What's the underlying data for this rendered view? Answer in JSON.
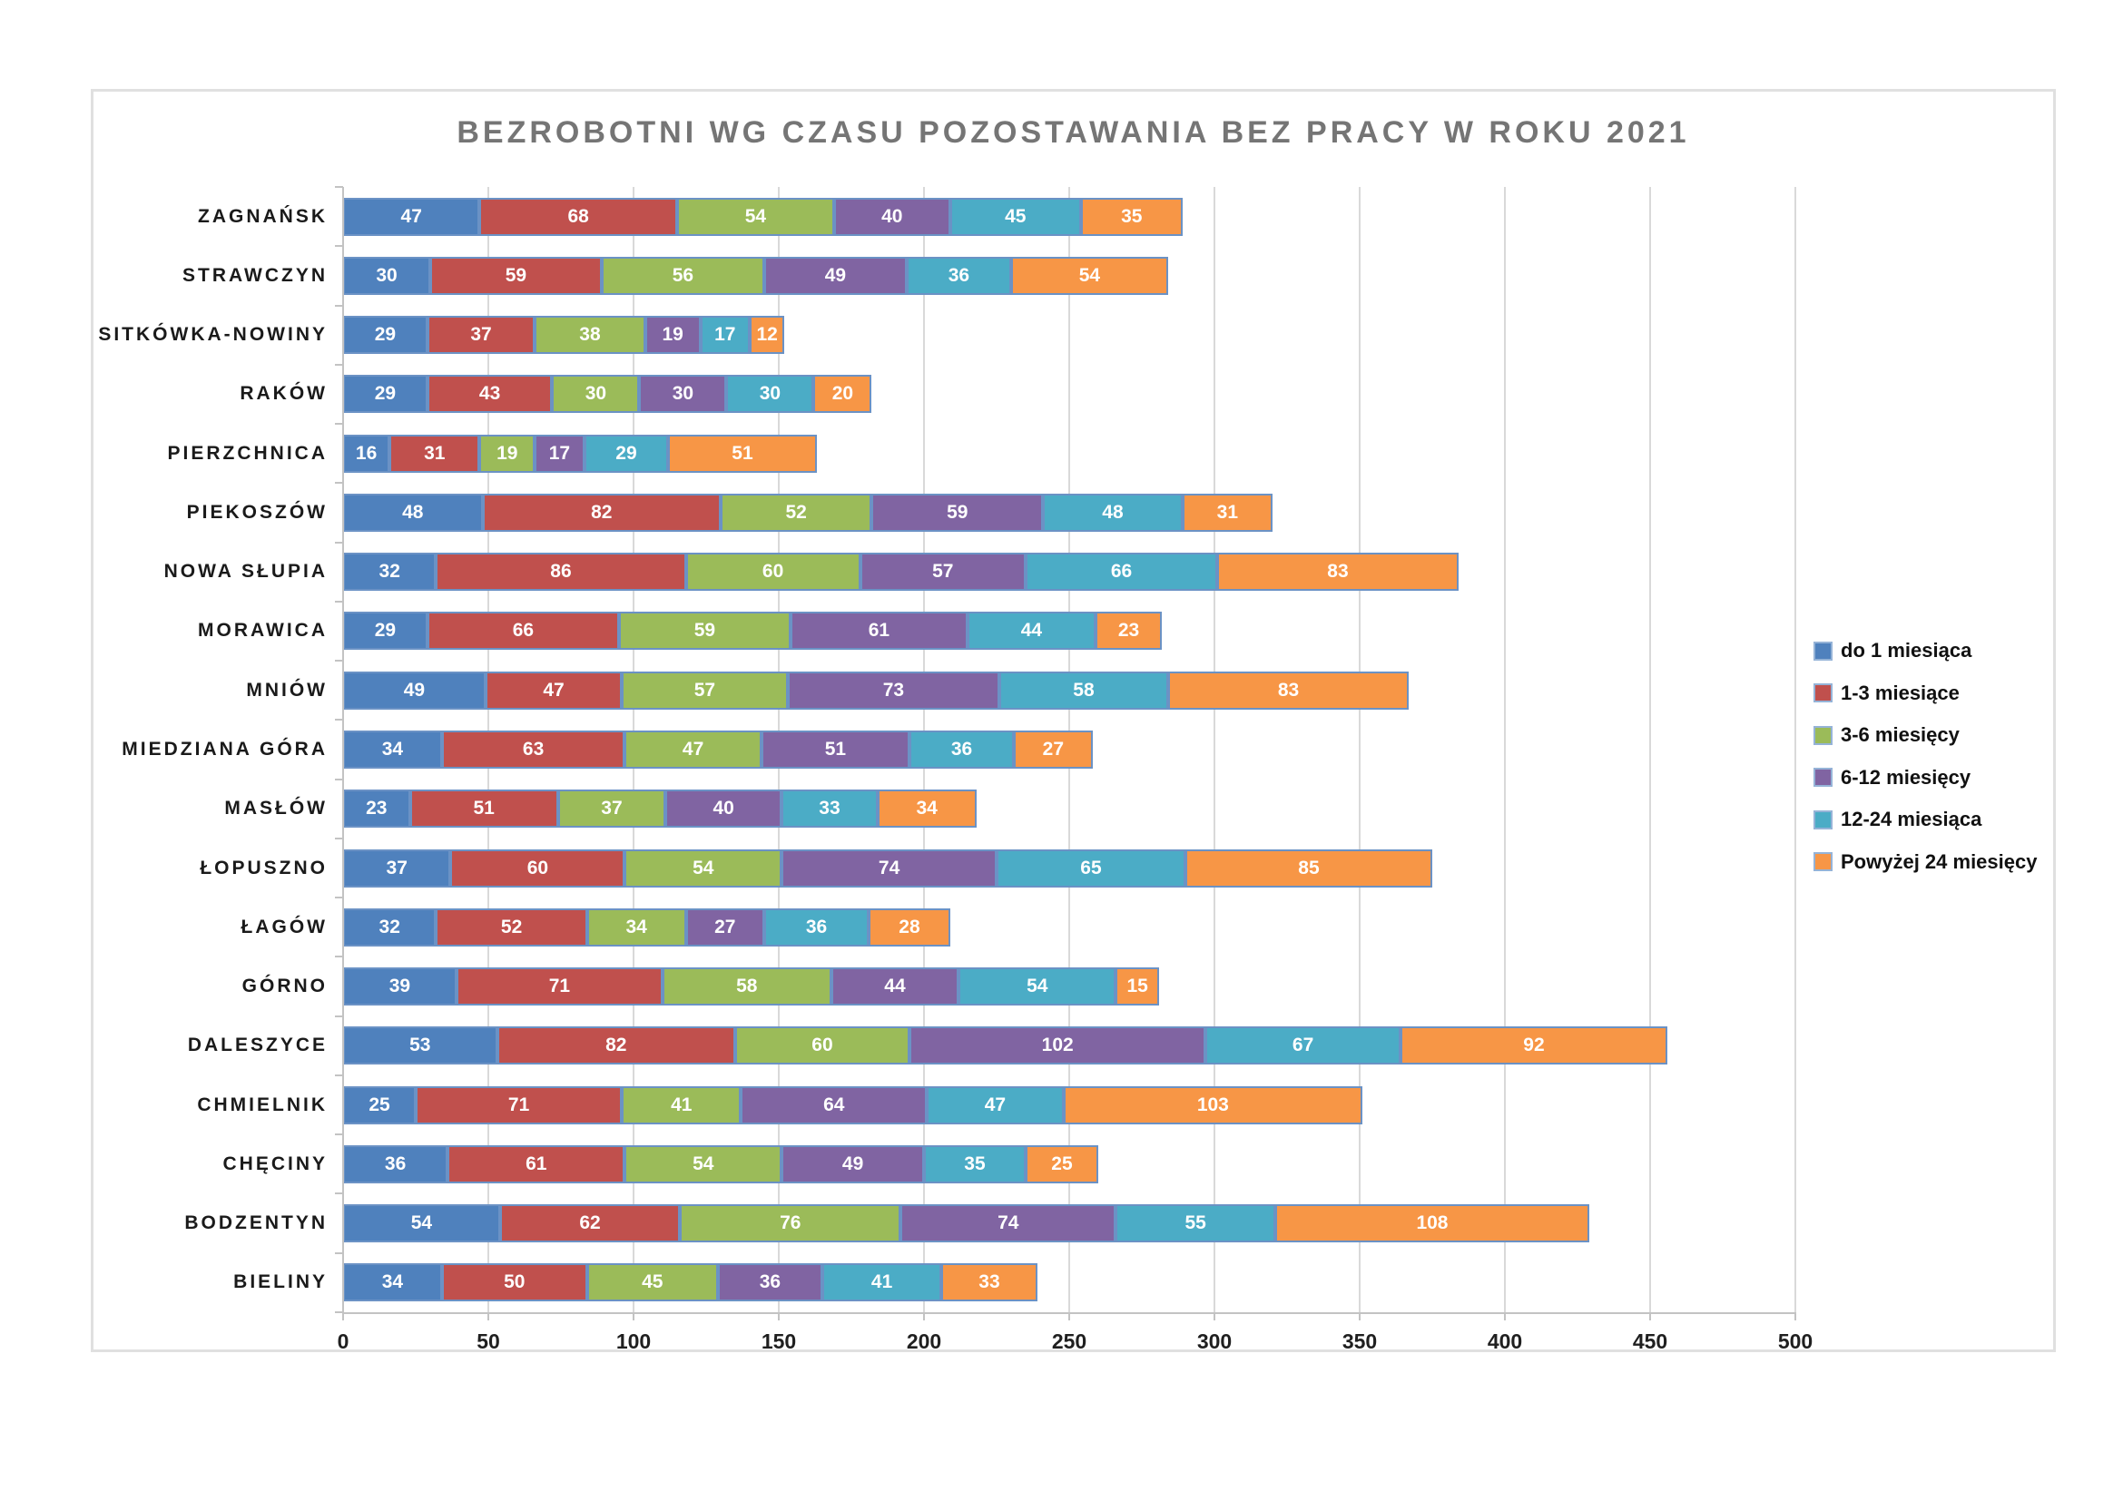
{
  "title": "BEZROBOTNI WG CZASU POZOSTAWANIA BEZ PRACY W ROKU 2021",
  "chart_data": {
    "type": "bar",
    "orientation": "horizontal",
    "stacked": true,
    "title": "BEZROBOTNI WG CZASU POZOSTAWANIA BEZ PRACY W ROKU 2021",
    "xlabel": "",
    "ylabel": "",
    "xlim": [
      0,
      500
    ],
    "x_ticks": [
      0,
      50,
      100,
      150,
      200,
      250,
      300,
      350,
      400,
      450,
      500
    ],
    "grid": true,
    "legend_position": "right",
    "value_label_color": "#ffffff",
    "bar_border_color": "#6b92c5",
    "categories": [
      "ZAGNAŃSK",
      "STRAWCZYN",
      "SITKÓWKA-NOWINY",
      "RAKÓW",
      "PIERZCHNICA",
      "PIEKOSZÓW",
      "NOWA SŁUPIA",
      "MORAWICA",
      "MNIÓW",
      "MIEDZIANA GÓRA",
      "MASŁÓW",
      "ŁOPUSZNO",
      "ŁAGÓW",
      "GÓRNO",
      "DALESZYCE",
      "CHMIELNIK",
      "CHĘCINY",
      "BODZENTYN",
      "BIELINY"
    ],
    "series": [
      {
        "name": "do 1 miesiąca",
        "color": "#4f81bd",
        "values": [
          47,
          30,
          29,
          29,
          16,
          48,
          32,
          29,
          49,
          34,
          23,
          37,
          32,
          39,
          53,
          25,
          36,
          54,
          34
        ]
      },
      {
        "name": "1-3 miesiące",
        "color": "#c0504d",
        "values": [
          68,
          59,
          37,
          43,
          31,
          82,
          86,
          66,
          47,
          63,
          51,
          60,
          52,
          71,
          82,
          71,
          61,
          62,
          50
        ]
      },
      {
        "name": "3-6 miesięcy",
        "color": "#9bbb59",
        "values": [
          54,
          56,
          38,
          30,
          19,
          52,
          60,
          59,
          57,
          47,
          37,
          54,
          34,
          58,
          60,
          41,
          54,
          76,
          45
        ]
      },
      {
        "name": "6-12 miesięcy",
        "color": "#8064a2",
        "values": [
          40,
          49,
          19,
          30,
          17,
          59,
          57,
          61,
          73,
          51,
          40,
          74,
          27,
          44,
          102,
          64,
          49,
          74,
          36
        ]
      },
      {
        "name": "12-24 miesiąca",
        "color": "#4bacc6",
        "values": [
          45,
          36,
          17,
          30,
          29,
          48,
          66,
          44,
          58,
          36,
          33,
          65,
          36,
          54,
          67,
          47,
          35,
          55,
          41
        ]
      },
      {
        "name": "Powyżej 24 miesięcy",
        "color": "#f79646",
        "values": [
          35,
          54,
          12,
          20,
          51,
          31,
          83,
          23,
          83,
          27,
          34,
          85,
          28,
          15,
          92,
          103,
          25,
          108,
          33
        ]
      }
    ]
  }
}
